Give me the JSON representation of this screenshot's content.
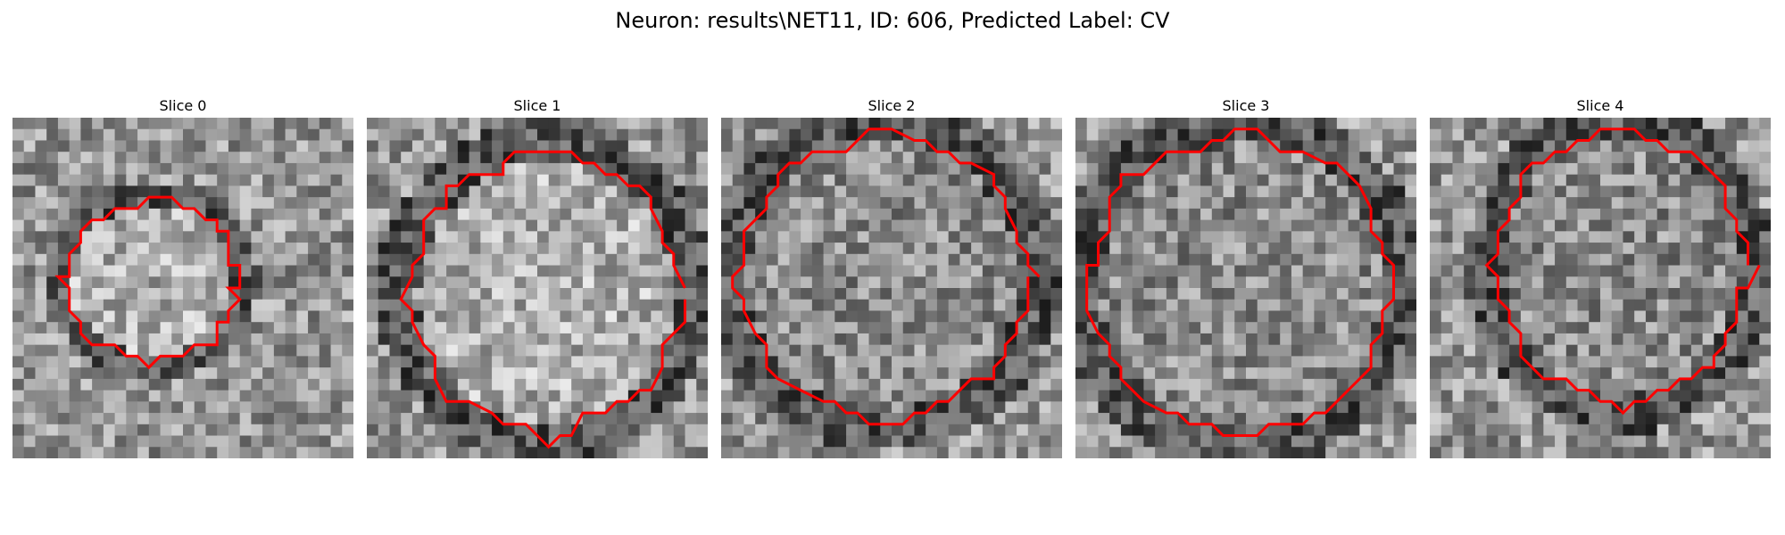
{
  "figure": {
    "title": "Neuron: results\\NET11, ID: 606, Predicted Label: CV"
  },
  "panels": [
    {
      "title": "Slice 0",
      "seed": 11,
      "center_shade": "light",
      "ring": "dark"
    },
    {
      "title": "Slice 1",
      "seed": 23,
      "center_shade": "light",
      "ring": "dark"
    },
    {
      "title": "Slice 2",
      "seed": 37,
      "center_shade": "mid",
      "ring": "dark"
    },
    {
      "title": "Slice 3",
      "seed": 51,
      "center_shade": "mid",
      "ring": "dark"
    },
    {
      "title": "Slice 4",
      "seed": 67,
      "center_shade": "mid",
      "ring": "dark"
    }
  ],
  "colors": {
    "contour": "#ff0000",
    "background": "#ffffff"
  },
  "image": {
    "colormap": "grayscale",
    "grid_cells": 30
  }
}
